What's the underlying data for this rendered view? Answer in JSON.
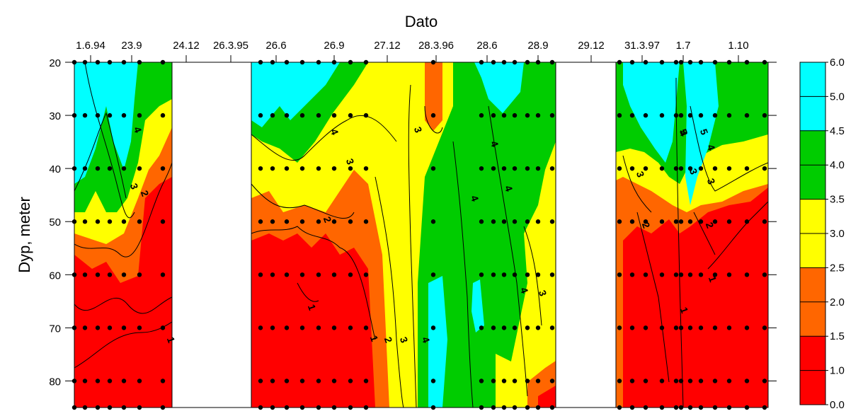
{
  "chart_data": {
    "type": "heatmap",
    "title": "",
    "xlabel": "Dato",
    "ylabel": "Dyp, meter",
    "x_axis_position": "top",
    "x_tick_labels": [
      "1.6.94",
      "23.9",
      "24.12",
      "26.3.95",
      "26.6",
      "26.9",
      "27.12",
      "28.3.96",
      "28.6",
      "28.9",
      "29.12",
      "31.3.97",
      "1.7",
      "1.10"
    ],
    "y_ticks": [
      20,
      30,
      40,
      50,
      60,
      70,
      80
    ],
    "ylim": [
      20,
      85
    ],
    "y_inverted": true,
    "data_gaps": [
      {
        "from": "24.12",
        "to": "26.3.95"
      },
      {
        "from": "29.12",
        "to": "31.3.97"
      }
    ],
    "colorbar": {
      "levels": [
        0.0,
        1.0,
        1.5,
        2.0,
        2.5,
        3.0,
        3.5,
        4.0,
        4.5,
        5.0,
        6.0
      ],
      "colors": [
        "#ff0000",
        "#ff0000",
        "#ff6600",
        "#ff6600",
        "#ffff00",
        "#ffff00",
        "#00cc00",
        "#00cc00",
        "#00ffff",
        "#00ffff"
      ],
      "labels": [
        "0.0",
        "1.0",
        "1.5",
        "2.0",
        "2.5",
        "3.0",
        "3.5",
        "4.0",
        "4.5",
        "5.0",
        "6.0"
      ],
      "placement": "right"
    },
    "contour_labels": [
      "1",
      "2",
      "3",
      "4",
      "5"
    ],
    "sample_depths": [
      20,
      30,
      40,
      50,
      60,
      70,
      80,
      85
    ],
    "grid": false
  }
}
